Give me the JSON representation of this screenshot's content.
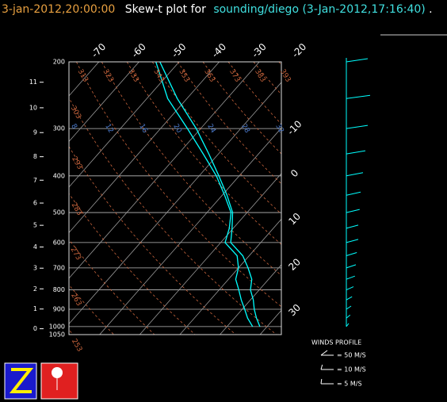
{
  "chart_data": {
    "type": "skewt",
    "header": {
      "time": "3-jan-2012,20:00:00",
      "text": "Skew-t plot for",
      "source": "sounding/diego (3-Jan-2012,17:16:40)",
      "end": "."
    },
    "log_y": true,
    "ylim": [
      1050,
      200
    ],
    "yticks": [
      200,
      300,
      400,
      500,
      600,
      700,
      800,
      900,
      1000,
      1050
    ],
    "height_ticks": [
      0,
      1,
      2,
      3,
      4,
      5,
      6,
      7,
      8,
      9,
      10,
      11
    ],
    "xticks": [
      -70,
      -60,
      -50,
      -40,
      -30,
      -20,
      -10,
      0,
      10,
      20,
      30
    ],
    "dry_adiabats": [
      313,
      323,
      333,
      343,
      353,
      363,
      373,
      383,
      393,
      303,
      293,
      283,
      273,
      263,
      253
    ],
    "adiabat_color": "#c8643c",
    "mixing_ratio_labels": [
      8,
      12,
      16,
      20,
      24,
      28,
      32
    ],
    "mixing_ratio_color": "#4a78c8",
    "isotherm_color": "#9a9a9a",
    "pressure": [
      200,
      250,
      300,
      350,
      400,
      450,
      500,
      550,
      600,
      650,
      700,
      750,
      800,
      850,
      900,
      950,
      1000
    ],
    "series": [
      {
        "color": "#00ffff",
        "values": [
          -54.8,
          -42.4,
          -31.1,
          -22.4,
          -15.1,
          -8.8,
          -3.6,
          -0.3,
          2.5,
          8.4,
          12.4,
          15.8,
          17.8,
          20.7,
          23.0,
          25.5,
          28.2
        ]
      },
      {
        "color": "#00ffff",
        "values": [
          -55.8,
          -44.8,
          -33.3,
          -23.8,
          -15.7,
          -9.4,
          -4.0,
          -1.0,
          1.1,
          7.0,
          10.0,
          11.8,
          14.9,
          17.7,
          20.6,
          23.3,
          26.4
        ]
      }
    ],
    "wind": {
      "title": "WINDS PROFILE",
      "color": "#00ffff",
      "values": [
        45,
        50,
        45,
        40,
        35,
        30,
        28,
        25,
        25,
        22,
        20,
        18,
        15,
        12,
        10,
        8,
        5
      ],
      "legend": [
        {
          "value": 50,
          "label": "= 50 M/S"
        },
        {
          "value": 10,
          "label": "= 10 M/S"
        },
        {
          "value": 5,
          "label": "= 5 M/S"
        }
      ]
    }
  }
}
